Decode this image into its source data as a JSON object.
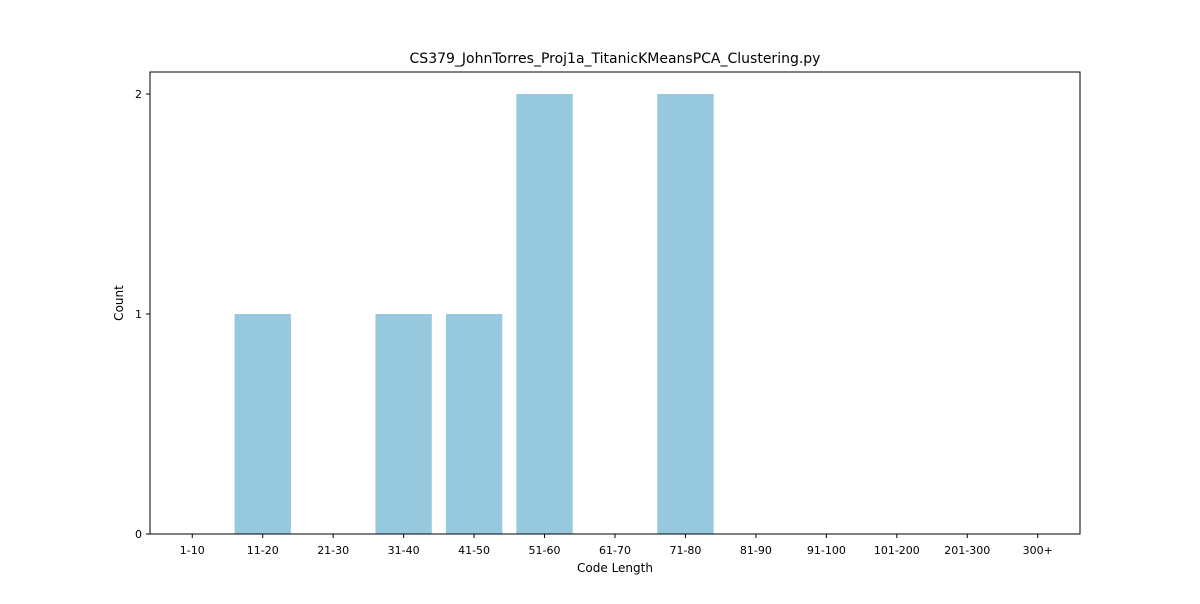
{
  "chart_data": {
    "type": "bar",
    "title": "CS379_JohnTorres_Proj1a_TitanicKMeansPCA_Clustering.py",
    "xlabel": "Code Length",
    "ylabel": "Count",
    "categories": [
      "1-10",
      "11-20",
      "21-30",
      "31-40",
      "41-50",
      "51-60",
      "61-70",
      "71-80",
      "81-90",
      "91-100",
      "101-200",
      "201-300",
      "300+"
    ],
    "values": [
      0,
      1,
      0,
      1,
      1,
      2,
      0,
      2,
      0,
      0,
      0,
      0,
      0
    ],
    "ylim": [
      0,
      2.1
    ],
    "yticks": [
      "0",
      "1",
      "2"
    ],
    "grid": false,
    "legend": "none",
    "colors": {
      "bar": "#96c9de",
      "axis": "#000000"
    }
  }
}
